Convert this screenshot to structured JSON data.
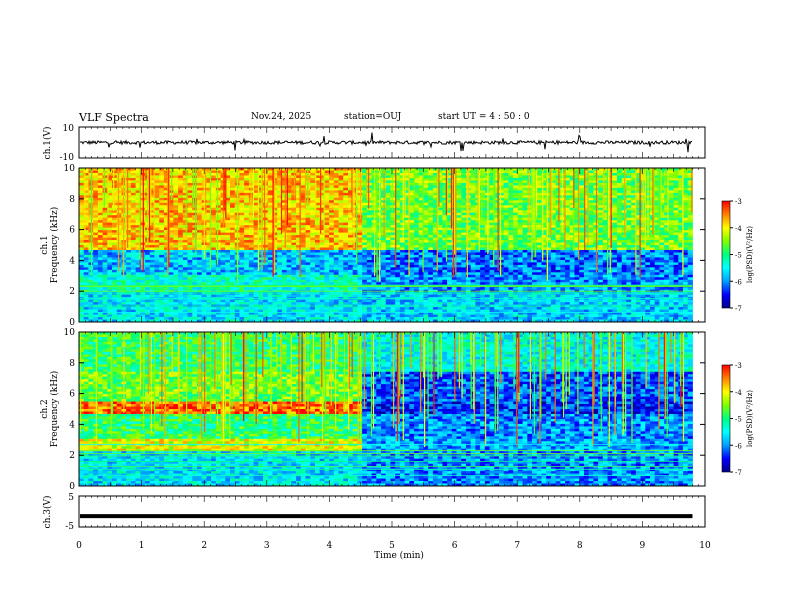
{
  "header": {
    "title": "VLF Spectra",
    "date": "Nov.24, 2025",
    "station": "station=OUJ",
    "start_ut": "start UT =  4 : 50 : 0"
  },
  "colors": {
    "colormap": [
      "#00008b",
      "#0000ff",
      "#00a0ff",
      "#00ffff",
      "#00ff80",
      "#80ff00",
      "#ffff00",
      "#ff8000",
      "#ff0000",
      "#ffffff"
    ]
  },
  "chart_data": [
    {
      "type": "line",
      "id": "ch1-waveform",
      "ylabel": "ch.1(V)",
      "ylim": [
        -10,
        10
      ],
      "yticks": [
        "10",
        "-10"
      ],
      "xlim": [
        0,
        10
      ],
      "baseline": 0
    },
    {
      "type": "heatmap",
      "id": "ch1-spectrogram",
      "ylabel": "Frequency (kHz)",
      "channel_label": "ch.1",
      "ylim": [
        0,
        10
      ],
      "yticks": [
        "10",
        "8",
        "6",
        "4",
        "2",
        "0"
      ],
      "xlim": [
        0,
        10
      ],
      "data_end_min": 9.8,
      "colorbar": {
        "label": "log(PSD)(V²/Hz)",
        "ticks": [
          "-3",
          "-4",
          "-5",
          "-6",
          "-7"
        ],
        "range": [
          -7,
          -3
        ]
      },
      "bands": [
        {
          "f0": 4.7,
          "f1": 10,
          "level_before": -3.8,
          "level_after": -4.6,
          "change_min": 4.55
        },
        {
          "f0": 3.0,
          "f1": 4.7,
          "level_before": -5.8,
          "level_after": -6.1,
          "change_min": 4.55
        },
        {
          "f0": 2.0,
          "f1": 3.0,
          "level_before": -5.3,
          "level_after": -6.0,
          "change_min": 4.55
        },
        {
          "f0": 0.0,
          "f1": 2.0,
          "level_before": -5.6,
          "level_after": -5.7,
          "change_min": 4.55
        }
      ]
    },
    {
      "type": "heatmap",
      "id": "ch2-spectrogram",
      "ylabel": "Frequency (kHz)",
      "channel_label": "ch.2",
      "ylim": [
        0,
        10
      ],
      "yticks": [
        "10",
        "8",
        "6",
        "4",
        "2",
        "0"
      ],
      "xlim": [
        0,
        10
      ],
      "data_end_min": 9.8,
      "colorbar": {
        "label": "log(PSD)(V²/Hz)",
        "ticks": [
          "-3",
          "-4",
          "-5",
          "-6",
          "-7"
        ],
        "range": [
          -7,
          -3
        ]
      },
      "bands": [
        {
          "f0": 7.5,
          "f1": 10,
          "level_before": -4.9,
          "level_after": -5.4,
          "change_min": 4.55
        },
        {
          "f0": 5.5,
          "f1": 7.5,
          "level_before": -4.6,
          "level_after": -6.2,
          "change_min": 4.55
        },
        {
          "f0": 4.6,
          "f1": 5.5,
          "level_before": -3.4,
          "level_after": -6.4,
          "change_min": 4.55
        },
        {
          "f0": 3.0,
          "f1": 4.6,
          "level_before": -4.9,
          "level_after": -6.0,
          "change_min": 4.55
        },
        {
          "f0": 2.2,
          "f1": 3.0,
          "level_before": -4.1,
          "level_after": -5.9,
          "change_min": 4.55
        },
        {
          "f0": 0.0,
          "f1": 2.2,
          "level_before": -5.6,
          "level_after": -6.0,
          "change_min": 4.55
        }
      ]
    },
    {
      "type": "line",
      "id": "ch3-waveform",
      "ylabel": "ch.3(V)",
      "ylim": [
        -5,
        5
      ],
      "yticks": [
        "5",
        "-5"
      ],
      "xlim": [
        0,
        10
      ],
      "baseline": -1.5
    }
  ],
  "xaxis": {
    "label": "Time (min)",
    "ticks": [
      "0",
      "1",
      "2",
      "3",
      "4",
      "5",
      "6",
      "7",
      "8",
      "9",
      "10"
    ]
  }
}
